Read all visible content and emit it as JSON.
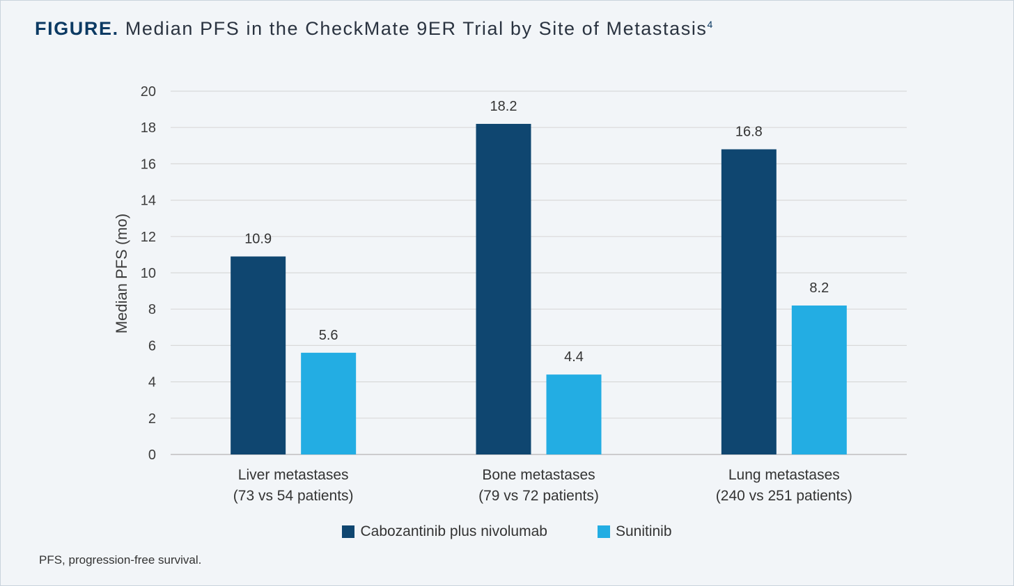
{
  "title": {
    "lead": "FIGURE.",
    "text": "Median PFS in the CheckMate 9ER Trial by Site of Metastasis",
    "superscript": "4"
  },
  "footnote": "PFS, progression-free survival.",
  "colors": {
    "series1": "#0f4670",
    "series2": "#23ade3",
    "grid": "#d9d9d9",
    "axis": "#bfbfbf"
  },
  "chart_data": {
    "type": "bar",
    "ylabel": "Median PFS (mo)",
    "xlabel": "",
    "ylim": [
      0,
      20
    ],
    "yticks": [
      0,
      2,
      4,
      6,
      8,
      10,
      12,
      14,
      16,
      18,
      20
    ],
    "grid": true,
    "legend_position": "bottom",
    "categories": [
      [
        "Liver metastases",
        "(73 vs 54 patients)"
      ],
      [
        "Bone metastases",
        "(79 vs 72 patients)"
      ],
      [
        "Lung metastases",
        "(240 vs 251 patients)"
      ]
    ],
    "series": [
      {
        "name": "Cabozantinib plus nivolumab",
        "values": [
          10.9,
          18.2,
          16.8
        ],
        "labels": [
          "10.9",
          "18.2",
          "16.8"
        ]
      },
      {
        "name": "Sunitinib",
        "values": [
          5.6,
          4.4,
          8.2
        ],
        "labels": [
          "5.6",
          "4.4",
          "8.2"
        ]
      }
    ]
  }
}
